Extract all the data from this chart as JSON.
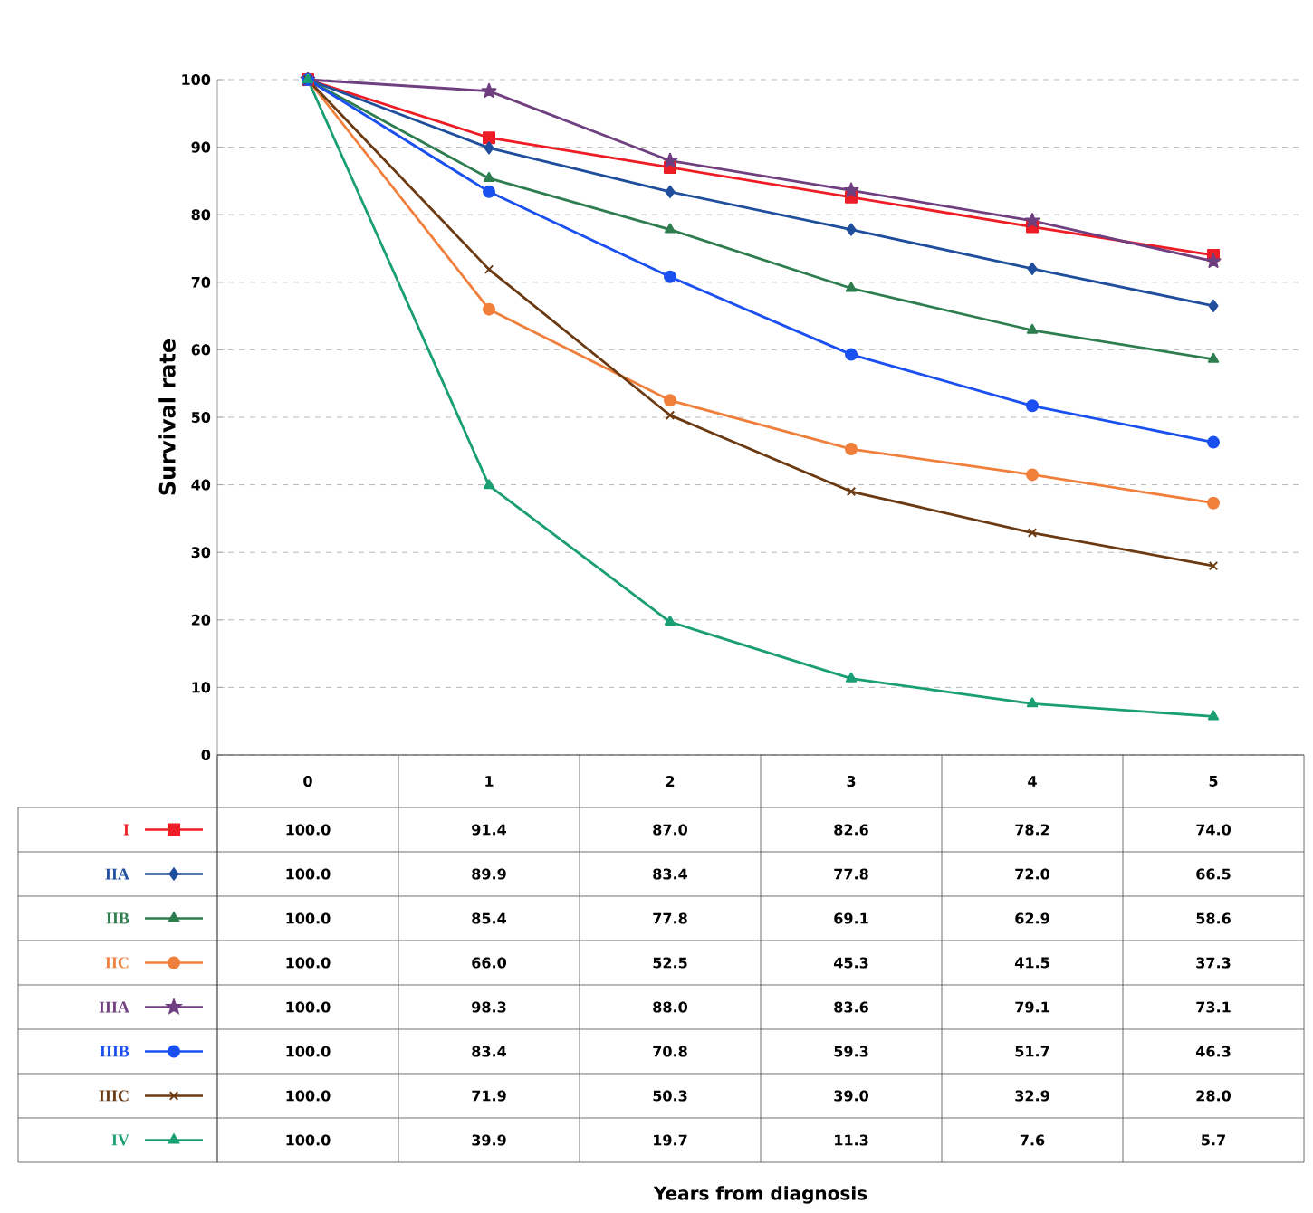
{
  "chart_data": {
    "type": "line",
    "ylabel": "Survival rate",
    "annotations": [
      "Years from diagnosis"
    ],
    "categories": [
      "0",
      "1",
      "2",
      "3",
      "4",
      "5"
    ],
    "ylim": [
      0,
      100
    ],
    "yticks": [
      0,
      10,
      20,
      30,
      40,
      50,
      60,
      70,
      80,
      90,
      100
    ],
    "grid": "y",
    "legend": "bottom",
    "tick_labels": "y",
    "line_style": "solid",
    "series": [
      {
        "name": "I",
        "color": "#ee1c25",
        "marker": "square",
        "values": [
          100.0,
          91.4,
          87.0,
          82.6,
          78.2,
          74.0
        ],
        "value_labels": [
          "100.0",
          "91.4",
          "87.0",
          "82.6",
          "78.2",
          "74.0"
        ]
      },
      {
        "name": "IIA",
        "color": "#1f4e9c",
        "marker": "diamond",
        "values": [
          100.0,
          89.9,
          83.4,
          77.8,
          72.0,
          66.5
        ],
        "value_labels": [
          "100.0",
          "89.9",
          "83.4",
          "77.8",
          "72.0",
          "66.5"
        ]
      },
      {
        "name": "IIB",
        "color": "#2e7d4f",
        "marker": "triangle",
        "values": [
          100.0,
          85.4,
          77.8,
          69.1,
          62.9,
          58.6
        ],
        "value_labels": [
          "100.0",
          "85.4",
          "77.8",
          "69.1",
          "62.9",
          "58.6"
        ]
      },
      {
        "name": "IIC",
        "color": "#f07f3c",
        "marker": "circle",
        "values": [
          100.0,
          66.0,
          52.5,
          45.3,
          41.5,
          37.3
        ],
        "value_labels": [
          "100.0",
          "66.0",
          "52.5",
          "45.3",
          "41.5",
          "37.3"
        ]
      },
      {
        "name": "IIIA",
        "color": "#6f3f7f",
        "marker": "star",
        "values": [
          100.0,
          98.3,
          88.0,
          83.6,
          79.1,
          73.1
        ],
        "value_labels": [
          "100.0",
          "98.3",
          "88.0",
          "83.6",
          "79.1",
          "73.1"
        ]
      },
      {
        "name": "IIIB",
        "color": "#1a4ff0",
        "marker": "circle",
        "values": [
          100.0,
          83.4,
          70.8,
          59.3,
          51.7,
          46.3
        ],
        "value_labels": [
          "100.0",
          "83.4",
          "70.8",
          "59.3",
          "51.7",
          "46.3"
        ]
      },
      {
        "name": "IIIC",
        "color": "#6b3a12",
        "marker": "cross",
        "values": [
          100.0,
          71.9,
          50.3,
          39.0,
          32.9,
          28.0
        ],
        "value_labels": [
          "100.0",
          "71.9",
          "50.3",
          "39.0",
          "32.9",
          "28.0"
        ]
      },
      {
        "name": "IV",
        "color": "#1a9e74",
        "marker": "triangle",
        "values": [
          100.0,
          39.9,
          19.7,
          11.3,
          7.6,
          5.7
        ],
        "value_labels": [
          "100.0",
          "39.9",
          "19.7",
          "11.3",
          "7.6",
          "5.7"
        ]
      }
    ]
  }
}
